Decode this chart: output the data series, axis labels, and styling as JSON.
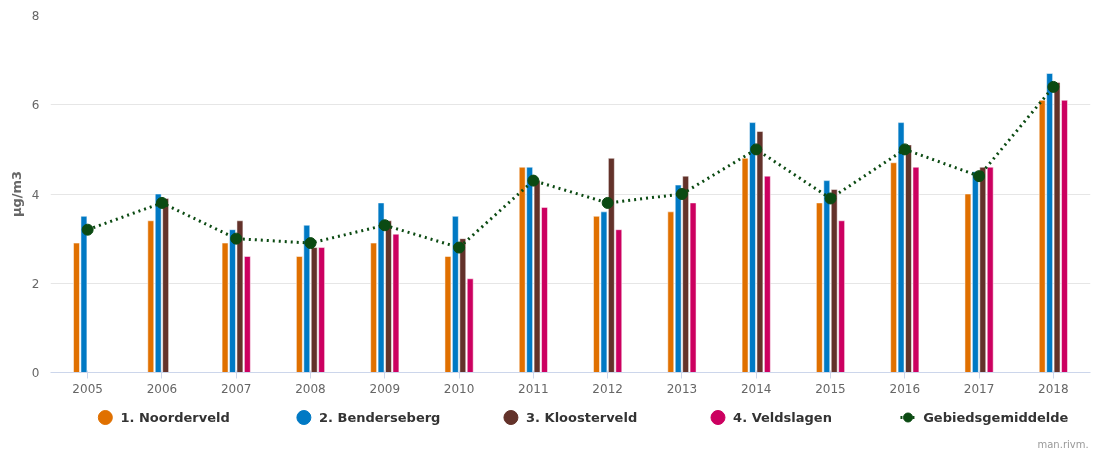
{
  "chart_data": {
    "type": "bar",
    "ylabel": "µg/m3",
    "categories": [
      "2005",
      "2006",
      "2007",
      "2008",
      "2009",
      "2010",
      "2011",
      "2012",
      "2013",
      "2014",
      "2015",
      "2016",
      "2017",
      "2018"
    ],
    "series": [
      {
        "name": "1. Noorderveld",
        "color": "#e07000",
        "values": [
          2.9,
          3.4,
          2.9,
          2.6,
          2.9,
          2.6,
          4.6,
          3.5,
          3.6,
          4.8,
          3.8,
          4.7,
          4.0,
          6.1
        ]
      },
      {
        "name": "2. Benderseberg",
        "color": "#0079c4",
        "values": [
          3.5,
          4.0,
          3.2,
          3.3,
          3.8,
          3.5,
          4.6,
          3.6,
          4.2,
          5.6,
          4.3,
          5.6,
          4.5,
          6.7
        ]
      },
      {
        "name": "3. Kloosterveld",
        "color": "#63322a",
        "values": [
          null,
          3.9,
          3.4,
          2.8,
          3.4,
          3.0,
          4.3,
          4.8,
          4.4,
          5.4,
          4.1,
          5.1,
          4.6,
          6.5
        ]
      },
      {
        "name": "4. Veldslagen",
        "color": "#cc0060",
        "values": [
          null,
          null,
          2.6,
          2.8,
          3.1,
          2.1,
          3.7,
          3.2,
          3.8,
          4.4,
          3.4,
          4.6,
          4.6,
          6.1
        ]
      },
      {
        "name": "Gebiedsgemiddelde",
        "type": "line",
        "color": "#0b4a12",
        "marker": "circle",
        "line_style": "dotted",
        "values": [
          3.2,
          3.8,
          3.0,
          2.9,
          3.3,
          2.8,
          4.3,
          3.8,
          4.0,
          5.0,
          3.9,
          5.0,
          4.4,
          6.4
        ]
      }
    ],
    "ylim": [
      0,
      8
    ],
    "yticks": [
      0,
      2,
      4,
      6,
      8
    ],
    "grid": "y",
    "legend": "bottom",
    "annotations": [
      "man.rivm."
    ]
  }
}
